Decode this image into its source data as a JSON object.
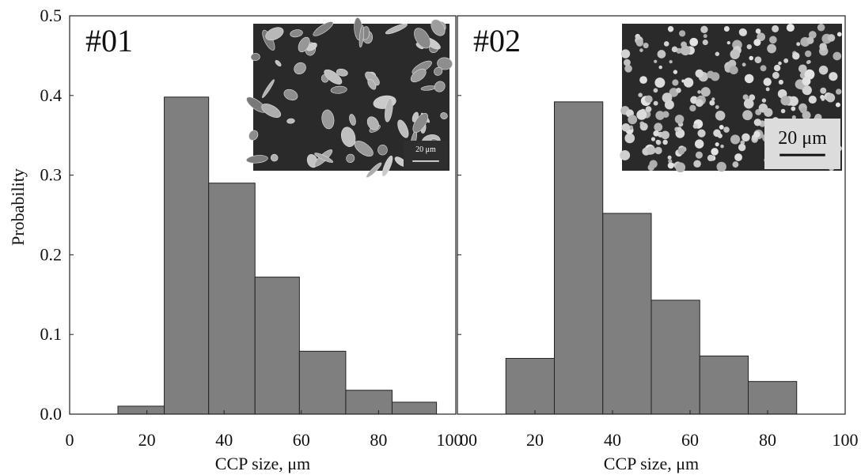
{
  "figure": {
    "ylabel": "Probability",
    "colors": {
      "bar_fill": "#7f7f7f",
      "bar_stroke": "#222222",
      "axis": "#222222",
      "inset_dark": "#2a2a2a",
      "inset_particle": "#bdbdbd"
    }
  },
  "chart_data": [
    {
      "type": "bar",
      "panel_label": "#01",
      "xlabel": "CCP size, μm",
      "ylabel": "Probability",
      "xlim": [
        0,
        100
      ],
      "ylim": [
        0,
        0.5
      ],
      "xticks": [
        "0",
        "20",
        "40",
        "60",
        "80",
        "100"
      ],
      "yticks": [
        "0.0",
        "0.1",
        "0.2",
        "0.3",
        "0.4",
        "0.5"
      ],
      "bins": [
        {
          "x0": 12.5,
          "x1": 24.5,
          "value": 0.01
        },
        {
          "x0": 24.5,
          "x1": 36.0,
          "value": 0.398
        },
        {
          "x0": 36.0,
          "x1": 48.0,
          "value": 0.29
        },
        {
          "x0": 48.0,
          "x1": 59.5,
          "value": 0.172
        },
        {
          "x0": 59.5,
          "x1": 71.5,
          "value": 0.079
        },
        {
          "x0": 71.5,
          "x1": 83.5,
          "value": 0.03
        },
        {
          "x0": 83.5,
          "x1": 95.0,
          "value": 0.015
        }
      ],
      "inset": {
        "scale_bar": "20 μm",
        "style": "irregular"
      }
    },
    {
      "type": "bar",
      "panel_label": "#02",
      "xlabel": "CCP size, μm",
      "xlim": [
        0,
        100
      ],
      "ylim": [
        0,
        0.5
      ],
      "xticks": [
        "00",
        "20",
        "40",
        "60",
        "80",
        "100"
      ],
      "bins": [
        {
          "x0": 12.5,
          "x1": 25.0,
          "value": 0.07
        },
        {
          "x0": 25.0,
          "x1": 37.5,
          "value": 0.392
        },
        {
          "x0": 37.5,
          "x1": 50.0,
          "value": 0.252
        },
        {
          "x0": 50.0,
          "x1": 62.5,
          "value": 0.143
        },
        {
          "x0": 62.5,
          "x1": 75.0,
          "value": 0.073
        },
        {
          "x0": 75.0,
          "x1": 87.5,
          "value": 0.041
        }
      ],
      "inset": {
        "scale_bar": "20 μm",
        "style": "spherical"
      }
    }
  ]
}
